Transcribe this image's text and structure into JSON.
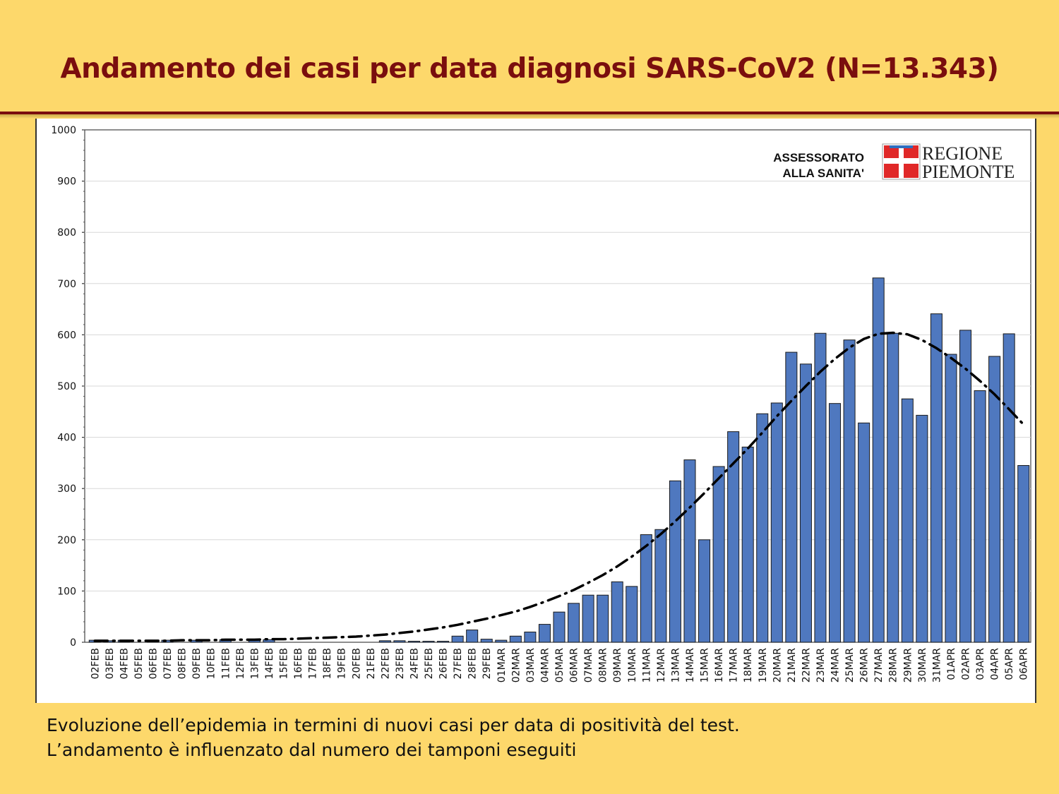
{
  "title": "Andamento dei casi per data diagnosi SARS-CoV2 (N=13.343)",
  "caption": {
    "line1": "Evoluzione dell’epidemia in termini di nuovi casi per data di positività del test.",
    "line2": "L’andamento è influenzato dal numero dei tamponi eseguiti"
  },
  "logo": {
    "assessorato_line1": "ASSESSORATO",
    "assessorato_line2": "ALLA SANITA'",
    "regione_line1": "REGIONE",
    "regione_line2": "PIEMONTE",
    "emblem": "piemonte-emblem-icon"
  },
  "colors": {
    "background": "#FDD86B",
    "title": "#7A0E0E",
    "bar_fill": "#4F78BF",
    "bar_stroke": "#1a1a1a",
    "trend": "#000000"
  },
  "chart_data": {
    "type": "bar",
    "title": "",
    "xlabel": "",
    "ylabel": "",
    "ylim": [
      0,
      1000
    ],
    "yticks": [
      0,
      100,
      200,
      300,
      400,
      500,
      600,
      700,
      800,
      900,
      1000
    ],
    "grid": true,
    "categories": [
      "02FEB",
      "03FEB",
      "04FEB",
      "05FEB",
      "06FEB",
      "07FEB",
      "08FEB",
      "09FEB",
      "10FEB",
      "11FEB",
      "12FEB",
      "13FEB",
      "14FEB",
      "15FEB",
      "16FEB",
      "17FEB",
      "18FEB",
      "19FEB",
      "20FEB",
      "21FEB",
      "22FEB",
      "23FEB",
      "24FEB",
      "25FEB",
      "26FEB",
      "27FEB",
      "28FEB",
      "29FEB",
      "01MAR",
      "02MAR",
      "03MAR",
      "04MAR",
      "05MAR",
      "06MAR",
      "07MAR",
      "08MAR",
      "09MAR",
      "10MAR",
      "11MAR",
      "12MAR",
      "13MAR",
      "14MAR",
      "15MAR",
      "16MAR",
      "17MAR",
      "18MAR",
      "19MAR",
      "20MAR",
      "21MAR",
      "22MAR",
      "23MAR",
      "24MAR",
      "25MAR",
      "26MAR",
      "27MAR",
      "28MAR",
      "29MAR",
      "30MAR",
      "31MAR",
      "01APR",
      "02APR",
      "03APR",
      "04APR",
      "05APR",
      "06APR"
    ],
    "values": [
      4,
      3,
      4,
      0,
      4,
      4,
      0,
      4,
      0,
      5,
      0,
      5,
      5,
      0,
      0,
      0,
      0,
      0,
      0,
      0,
      3,
      3,
      2,
      2,
      2,
      12,
      24,
      6,
      4,
      12,
      20,
      35,
      59,
      76,
      92,
      92,
      118,
      109,
      210,
      220,
      315,
      356,
      200,
      343,
      411,
      381,
      446,
      467,
      566,
      543,
      603,
      466,
      590,
      428,
      711,
      603,
      475,
      443,
      641,
      562,
      609,
      491,
      558,
      602,
      345
    ],
    "series": [
      {
        "type": "line",
        "style": "dash-dot",
        "values": [
          3,
          3,
          3,
          3,
          3,
          3,
          4,
          4,
          4,
          5,
          5,
          5,
          6,
          6,
          7,
          8,
          9,
          10,
          11,
          13,
          15,
          18,
          21,
          25,
          29,
          34,
          40,
          46,
          53,
          60,
          69,
          79,
          90,
          102,
          116,
          131,
          148,
          167,
          188,
          211,
          236,
          263,
          291,
          320,
          349,
          378,
          409,
          441,
          471,
          500,
          528,
          553,
          575,
          592,
          602,
          604,
          601,
          590,
          574,
          555,
          534,
          510,
          484,
          455,
          425
        ]
      }
    ]
  }
}
